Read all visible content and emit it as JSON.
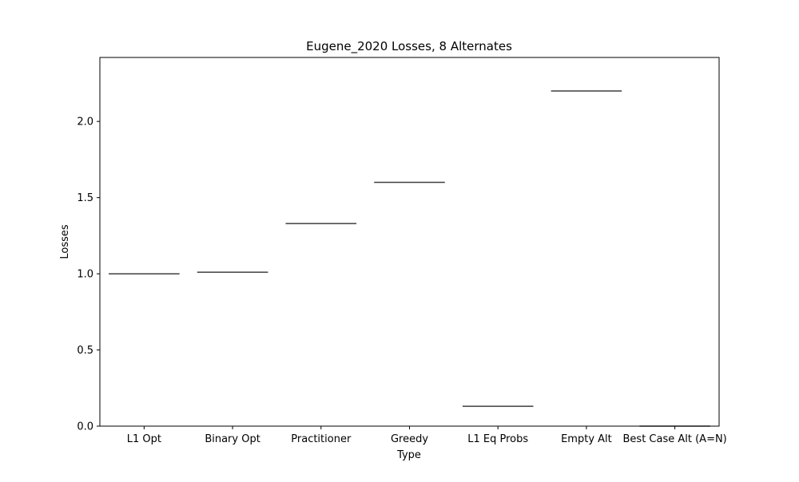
{
  "chart_data": {
    "type": "box",
    "title": "Eugene_2020 Losses, 8 Alternates",
    "xlabel": "Type",
    "ylabel": "Losses",
    "categories": [
      "L1 Opt",
      "Binary Opt",
      "Practitioner",
      "Greedy",
      "L1 Eq Probs",
      "Empty Alt",
      "Best Case Alt (A=N)"
    ],
    "values": [
      1.0,
      1.01,
      1.33,
      1.6,
      0.13,
      2.2,
      0.0
    ],
    "ylim": [
      0,
      2.42
    ],
    "yticks": [
      0.0,
      0.5,
      1.0,
      1.5,
      2.0
    ],
    "ytick_labels": [
      "0.0",
      "0.5",
      "1.0",
      "1.5",
      "2.0"
    ],
    "grid": false,
    "line_color": "#3f3f3f"
  }
}
